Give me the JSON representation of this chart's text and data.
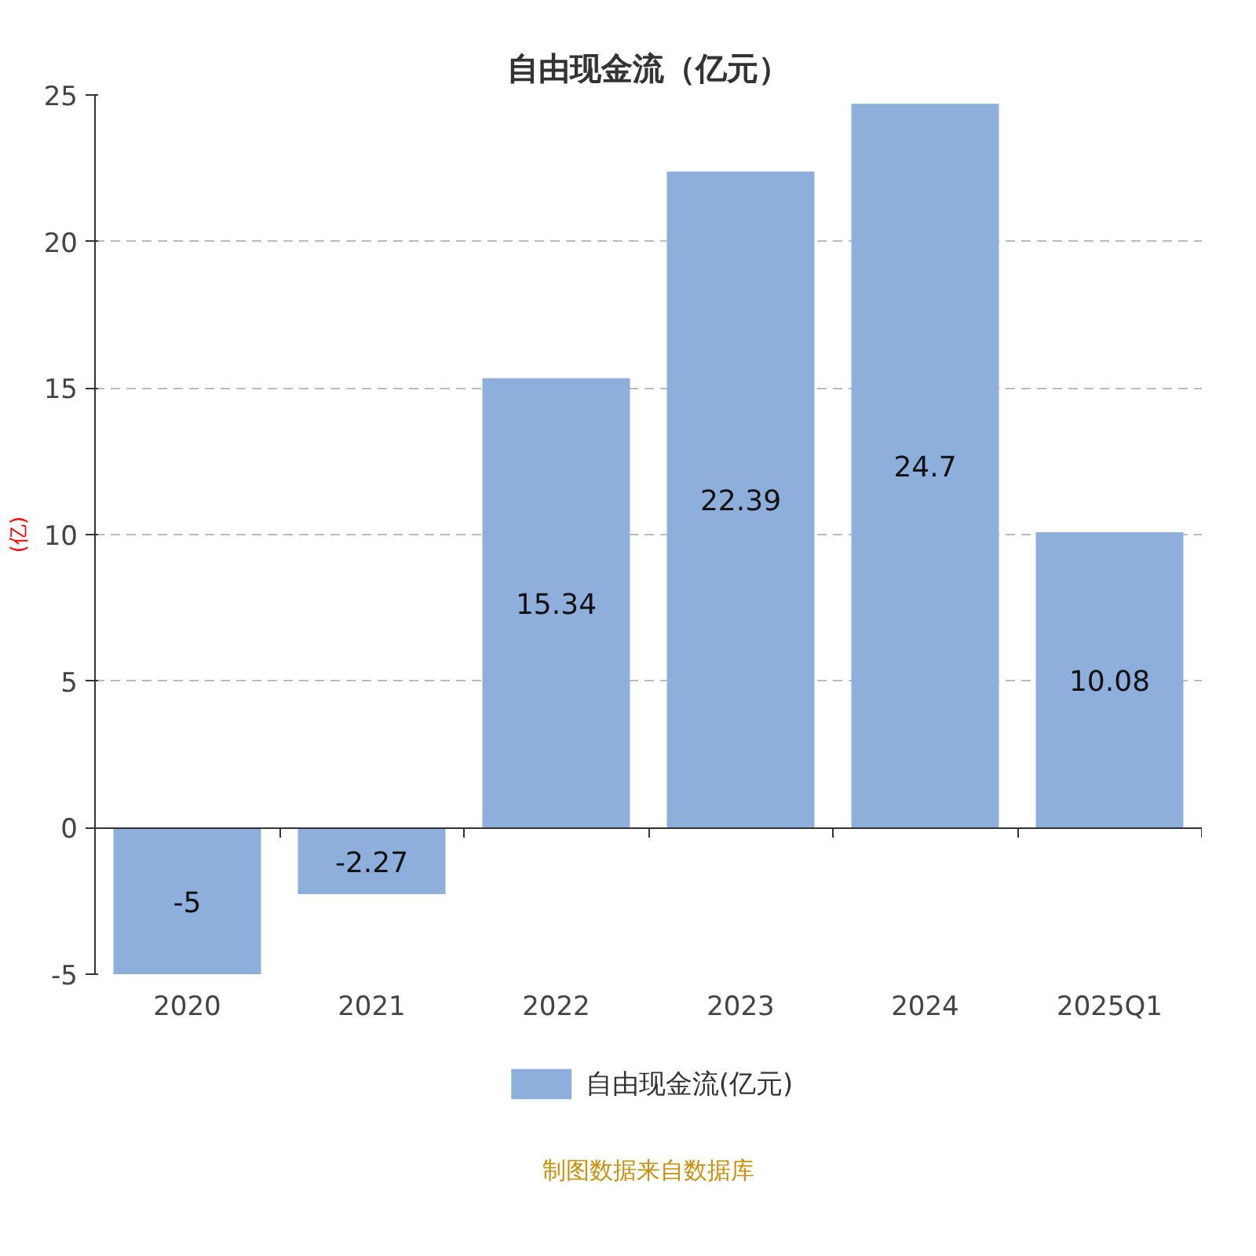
{
  "chart_data": {
    "type": "bar",
    "title": "自由现金流（亿元）",
    "ylabel": "(亿)",
    "categories": [
      "2020",
      "2021",
      "2022",
      "2023",
      "2024",
      "2025Q1"
    ],
    "series": [
      {
        "name": "自由现金流(亿元)",
        "color": "#8eaedb",
        "values": [
          -5,
          -2.27,
          15.34,
          22.39,
          24.7,
          10.08
        ]
      }
    ],
    "ylim": [
      -5,
      25
    ],
    "yticks": [
      -5,
      0,
      5,
      10,
      15,
      20,
      25
    ],
    "grid": "y",
    "legend": "bottom",
    "data_labels": true,
    "annotations": [
      "制图数据来自数据库"
    ]
  }
}
